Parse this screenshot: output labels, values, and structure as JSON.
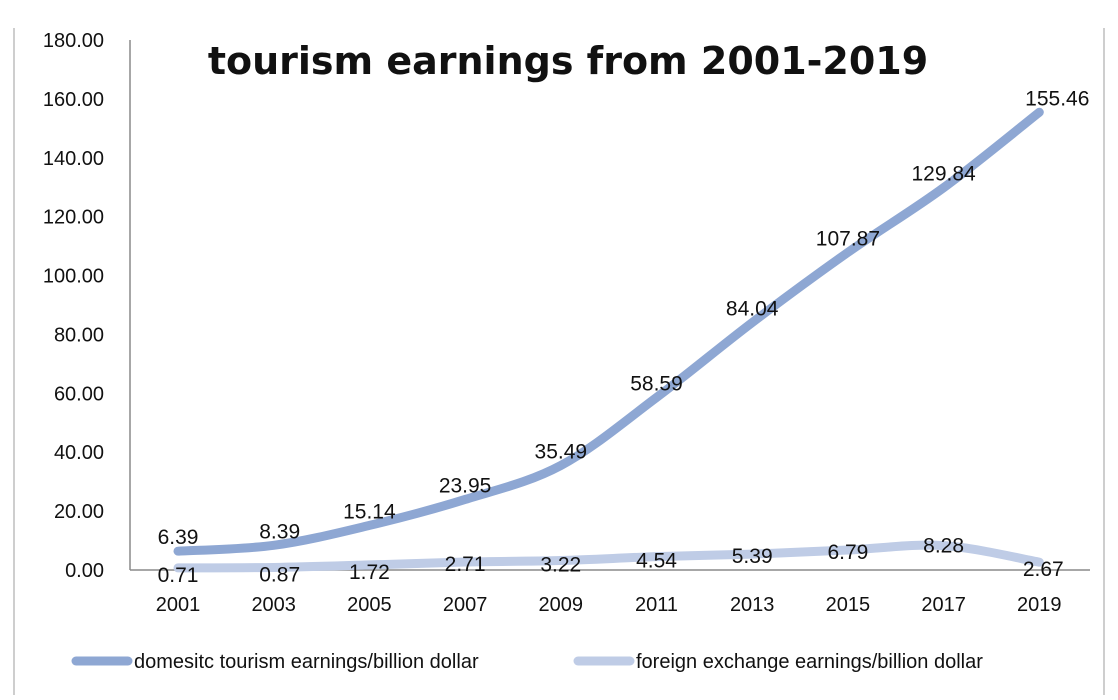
{
  "chart_data": {
    "type": "line",
    "title": "tourism earnings from 2001-2019",
    "xlabel": "",
    "ylabel": "",
    "categories": [
      "2001",
      "2003",
      "2005",
      "2007",
      "2009",
      "2011",
      "2013",
      "2015",
      "2017",
      "2019"
    ],
    "ylim": [
      0,
      180
    ],
    "yticks": [
      "0.00",
      "20.00",
      "40.00",
      "60.00",
      "80.00",
      "100.00",
      "120.00",
      "140.00",
      "160.00",
      "180.00"
    ],
    "grid": false,
    "legend_position": "bottom",
    "series": [
      {
        "name": "domesitc tourism earnings/billion dollar",
        "color": "#8EA7D3",
        "values": [
          6.39,
          8.39,
          15.14,
          23.95,
          35.49,
          58.59,
          84.04,
          107.87,
          129.84,
          155.46
        ],
        "labels": [
          "6.39",
          "8.39",
          "15.14",
          "23.95",
          "35.49",
          "58.59",
          "84.04",
          "107.87",
          "129.84",
          "155.46"
        ]
      },
      {
        "name": "foreign exchange earnings/billion dollar",
        "color": "#BFCCE6",
        "values": [
          0.71,
          0.87,
          1.72,
          2.71,
          3.22,
          4.54,
          5.39,
          6.79,
          8.28,
          2.67
        ],
        "labels": [
          "0.71",
          "0.87",
          "1.72",
          "2.71",
          "3.22",
          "4.54",
          "5.39",
          "6.79",
          "8.28",
          "2.67"
        ]
      }
    ]
  }
}
